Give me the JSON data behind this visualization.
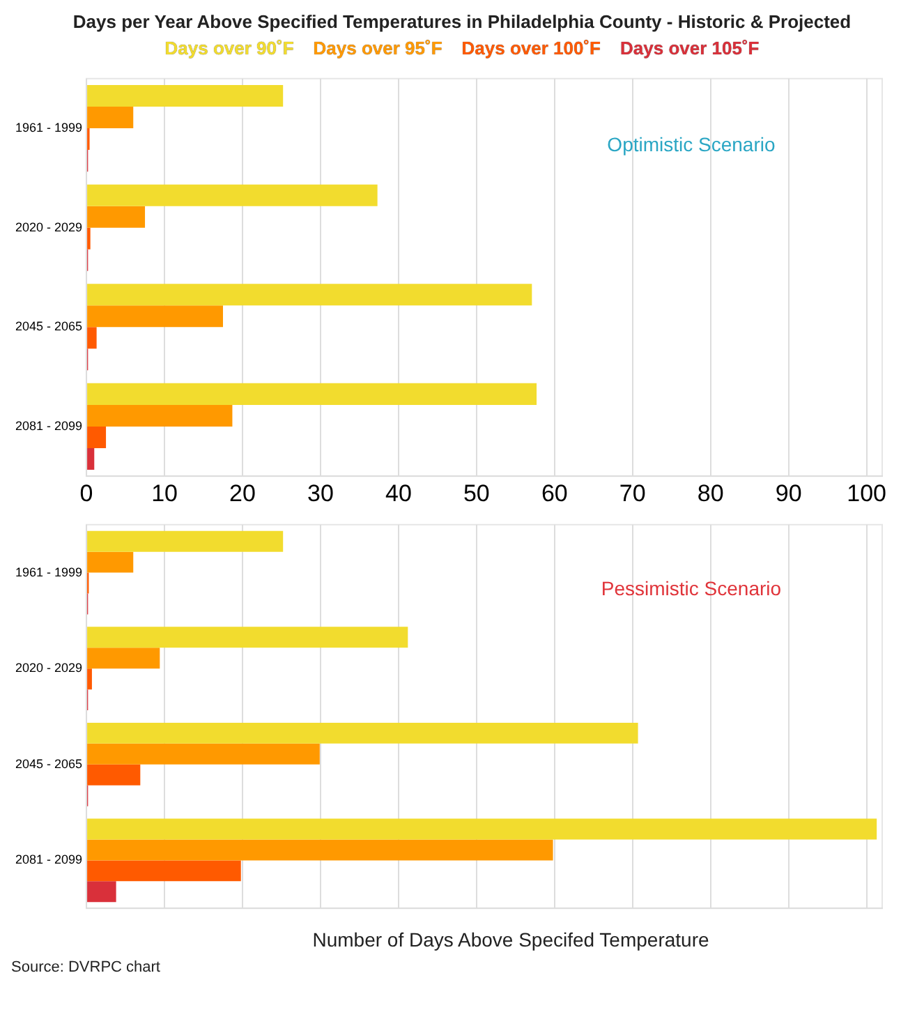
{
  "chart_data": [
    {
      "type": "bar",
      "orientation": "horizontal",
      "title": "Days per Year Above Specified Temperatures in Philadelphia County - Historic & Projected",
      "categories": [
        "1961 - 1999",
        "2020 - 2029",
        "2045 - 2065",
        "2081 - 2099"
      ],
      "series": [
        {
          "name": "Days over 90˚F",
          "color": "#f2dc2e",
          "values": [
            25.2,
            37.3,
            57.1,
            57.7
          ]
        },
        {
          "name": "Days over 95˚F",
          "color": "#ff9900",
          "values": [
            6.0,
            7.5,
            17.5,
            18.7
          ]
        },
        {
          "name": "Days over 100˚F",
          "color": "#ff5a00",
          "values": [
            0.4,
            0.5,
            1.3,
            2.5
          ]
        },
        {
          "name": "Days over 105˚F",
          "color": "#d9303a",
          "values": [
            0.2,
            0.2,
            0.2,
            1.0
          ]
        }
      ],
      "xlim": [
        0,
        102
      ],
      "xticks": [
        0,
        10,
        20,
        30,
        40,
        50,
        60,
        70,
        80,
        90,
        100
      ],
      "grid": "x",
      "legend": "top",
      "annotations": [
        "Optimistic Scenario"
      ]
    },
    {
      "type": "bar",
      "orientation": "horizontal",
      "xlabel": "Number of Days Above Specifed Temperature",
      "categories": [
        "1961 - 1999",
        "2020 - 2029",
        "2045 - 2065",
        "2081 - 2099"
      ],
      "series": [
        {
          "color": "#f2dc2e",
          "values": [
            25.2,
            41.2,
            70.7,
            101.3
          ]
        },
        {
          "color": "#ff9900",
          "values": [
            6.0,
            9.4,
            29.9,
            59.8
          ]
        },
        {
          "color": "#ff5a00",
          "values": [
            0.3,
            0.7,
            6.9,
            19.8
          ]
        },
        {
          "color": "#d9303a",
          "values": [
            0.2,
            0.2,
            0.2,
            3.8
          ]
        }
      ],
      "xlim": [
        0,
        102
      ],
      "xticks": [
        0,
        10,
        20,
        30,
        40,
        50,
        60,
        70,
        80,
        90,
        100
      ],
      "grid": "x",
      "tick_labels": "y",
      "annotations": [
        "Pessimistic Scenario",
        "Source: DVRPC chart"
      ]
    }
  ]
}
